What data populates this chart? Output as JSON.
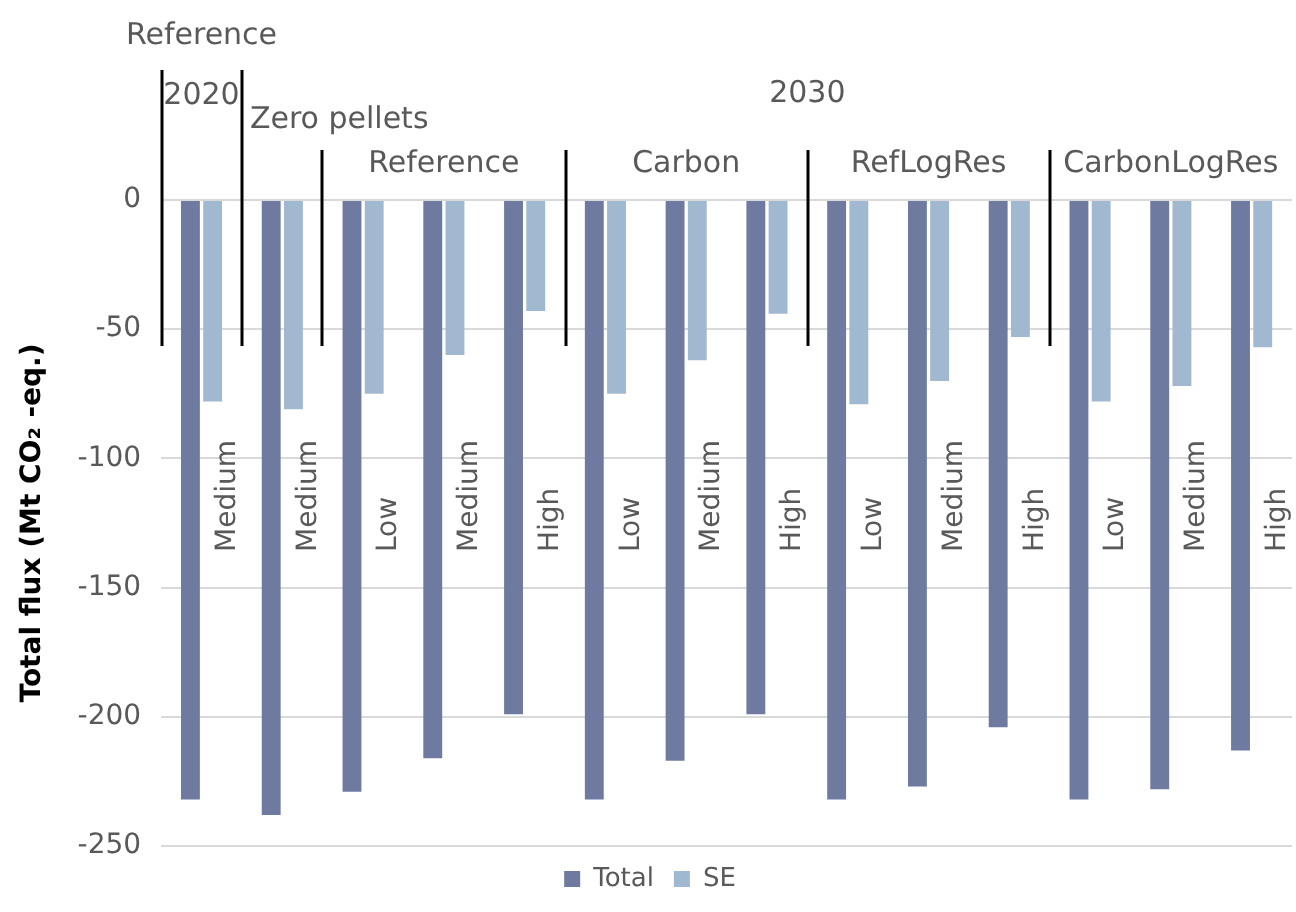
{
  "chart_data": {
    "type": "bar",
    "ylabel": "Total flux (Mt CO₂ -eq.)",
    "categories": [
      "Medium",
      "Medium",
      "Low",
      "Medium",
      "High",
      "Low",
      "Medium",
      "High",
      "Low",
      "Medium",
      "High",
      "Low",
      "Medium",
      "High"
    ],
    "series": [
      {
        "name": "Total",
        "color": "#6f7aa0",
        "values": [
          -232,
          -238,
          -229,
          -216,
          -199,
          -232,
          -217,
          -199,
          -232,
          -227,
          -204,
          -232,
          -228,
          -213
        ]
      },
      {
        "name": "SE",
        "color": "#a0b8d0",
        "values": [
          -78,
          -81,
          -75,
          -60,
          -43,
          -75,
          -62,
          -44,
          -79,
          -70,
          -53,
          -78,
          -72,
          -57
        ]
      }
    ],
    "annotations": [
      "Reference",
      "2020",
      "Zero pellets",
      "Reference",
      "Carbon",
      "RefLogRes",
      "CarbonLogRes",
      "2030"
    ],
    "ylim": [
      -250,
      0
    ],
    "yticks": [
      -250,
      -200,
      -150,
      -100,
      -50,
      0
    ],
    "grid": "y",
    "legend": "bottom"
  }
}
